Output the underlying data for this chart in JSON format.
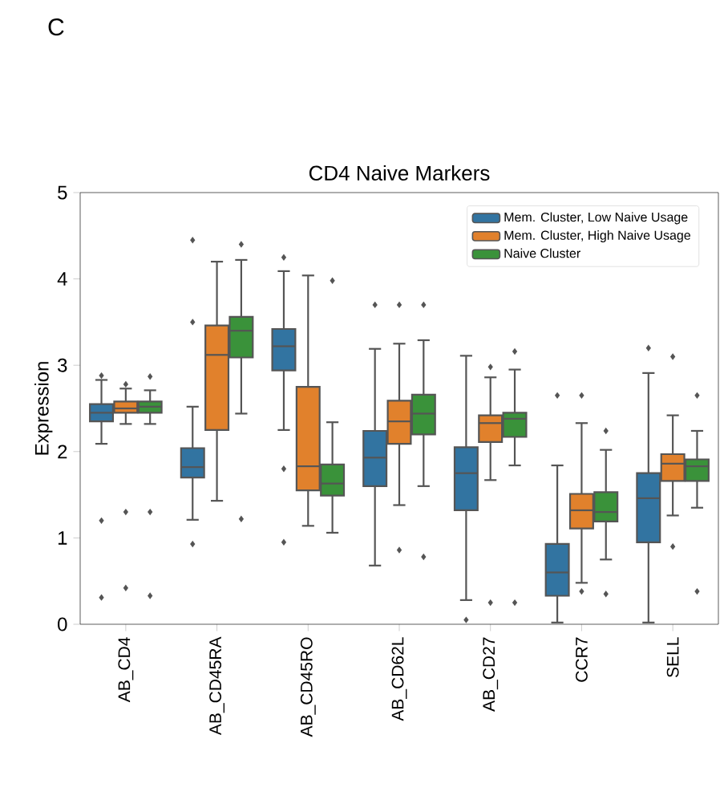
{
  "chart_data": {
    "type": "box",
    "title": "CD4 Naive Markers",
    "ylabel": "Expression",
    "annotations": [
      "C"
    ],
    "categories": [
      "AB_CD4",
      "AB_CD45RA",
      "AB_CD45RO",
      "AB_CD62L",
      "AB_CD27",
      "CCR7",
      "SELL"
    ],
    "series": [
      {
        "name": "Mem. Cluster, Low Naive Usage",
        "color": "#3274a1",
        "boxes": [
          {
            "low": 2.09,
            "q1": 2.35,
            "median": 2.45,
            "q3": 2.55,
            "high": 2.83,
            "outliers": [
              0.31,
              1.2,
              2.88
            ]
          },
          {
            "low": 1.21,
            "q1": 1.7,
            "median": 1.82,
            "q3": 2.04,
            "high": 2.52,
            "outliers": [
              0.93,
              3.5,
              4.45
            ]
          },
          {
            "low": 2.25,
            "q1": 2.94,
            "median": 3.22,
            "q3": 3.42,
            "high": 4.09,
            "outliers": [
              0.95,
              1.8,
              4.25
            ]
          },
          {
            "low": 0.68,
            "q1": 1.6,
            "median": 1.93,
            "q3": 2.24,
            "high": 3.19,
            "outliers": [
              3.7
            ]
          },
          {
            "low": 0.28,
            "q1": 1.32,
            "median": 1.75,
            "q3": 2.05,
            "high": 3.11,
            "outliers": [
              0.05
            ]
          },
          {
            "low": 0.02,
            "q1": 0.33,
            "median": 0.6,
            "q3": 0.93,
            "high": 1.84,
            "outliers": [
              2.65
            ]
          },
          {
            "low": 0.02,
            "q1": 0.95,
            "median": 1.46,
            "q3": 1.75,
            "high": 2.91,
            "outliers": [
              3.2
            ]
          }
        ]
      },
      {
        "name": "Mem. Cluster, High Naive Usage",
        "color": "#e1812c",
        "boxes": [
          {
            "low": 2.32,
            "q1": 2.45,
            "median": 2.5,
            "q3": 2.58,
            "high": 2.73,
            "outliers": [
              0.42,
              1.3,
              2.78
            ]
          },
          {
            "low": 1.43,
            "q1": 2.25,
            "median": 3.12,
            "q3": 3.46,
            "high": 4.2
          },
          {
            "low": 1.14,
            "q1": 1.55,
            "median": 1.83,
            "q3": 2.75,
            "high": 4.04
          },
          {
            "low": 1.38,
            "q1": 2.09,
            "median": 2.35,
            "q3": 2.59,
            "high": 3.25,
            "outliers": [
              0.86,
              3.7
            ]
          },
          {
            "low": 1.67,
            "q1": 2.11,
            "median": 2.33,
            "q3": 2.42,
            "high": 2.86,
            "outliers": [
              0.25,
              2.98
            ]
          },
          {
            "low": 0.48,
            "q1": 1.11,
            "median": 1.32,
            "q3": 1.51,
            "high": 2.33,
            "outliers": [
              0.38,
              2.65
            ]
          },
          {
            "low": 1.26,
            "q1": 1.66,
            "median": 1.86,
            "q3": 1.97,
            "high": 2.42,
            "outliers": [
              0.9,
              3.1
            ]
          }
        ]
      },
      {
        "name": "Naive Cluster",
        "color": "#3a923a",
        "boxes": [
          {
            "low": 2.32,
            "q1": 2.45,
            "median": 2.52,
            "q3": 2.58,
            "high": 2.71,
            "outliers": [
              0.33,
              1.3,
              2.87
            ]
          },
          {
            "low": 2.44,
            "q1": 3.09,
            "median": 3.4,
            "q3": 3.56,
            "high": 4.22,
            "outliers": [
              1.22,
              4.4
            ]
          },
          {
            "low": 1.06,
            "q1": 1.49,
            "median": 1.63,
            "q3": 1.85,
            "high": 2.34,
            "outliers": [
              3.98
            ]
          },
          {
            "low": 1.6,
            "q1": 2.2,
            "median": 2.44,
            "q3": 2.66,
            "high": 3.29,
            "outliers": [
              0.78,
              3.7
            ]
          },
          {
            "low": 1.84,
            "q1": 2.17,
            "median": 2.38,
            "q3": 2.45,
            "high": 2.95,
            "outliers": [
              0.25,
              3.16
            ]
          },
          {
            "low": 0.75,
            "q1": 1.19,
            "median": 1.3,
            "q3": 1.53,
            "high": 2.02,
            "outliers": [
              0.35,
              2.24
            ]
          },
          {
            "low": 1.35,
            "q1": 1.66,
            "median": 1.83,
            "q3": 1.91,
            "high": 2.24,
            "outliers": [
              0.38,
              2.65
            ]
          }
        ]
      }
    ],
    "ylim": [
      0,
      5
    ],
    "yticks": [
      0,
      1,
      2,
      3,
      4,
      5
    ],
    "legend": "top right"
  }
}
